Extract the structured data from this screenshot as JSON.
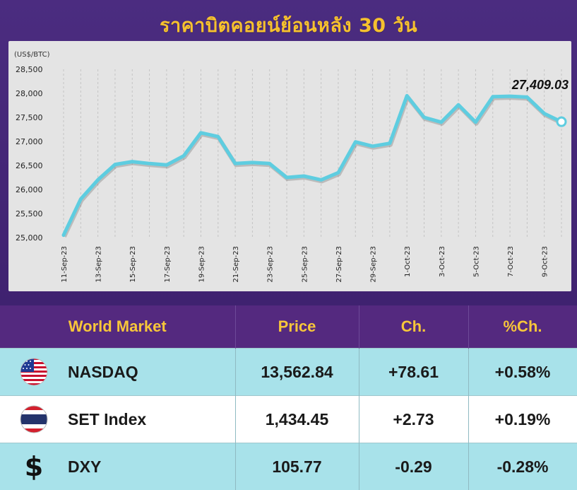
{
  "title": "ราคาบิตคอยน์ย้อนหลัง 30 วัน",
  "chart_data": {
    "type": "line",
    "ylabel": "(US$/BTC)",
    "ylim": [
      25000,
      28500
    ],
    "yticks": [
      "25,000",
      "25,500",
      "26,000",
      "26,500",
      "27,000",
      "27,500",
      "28,000",
      "28,500"
    ],
    "x_tick_labels": [
      "11-Sep-23",
      "13-Sep-23",
      "15-Sep-23",
      "17-Sep-23",
      "19-Sep-23",
      "21-Sep-23",
      "23-Sep-23",
      "25-Sep-23",
      "27-Sep-23",
      "29-Sep-23",
      "1-Oct-23",
      "3-Oct-23",
      "5-Oct-23",
      "7-Oct-23",
      "9-Oct-23"
    ],
    "x": [
      "11-Sep-23",
      "12-Sep-23",
      "13-Sep-23",
      "14-Sep-23",
      "15-Sep-23",
      "16-Sep-23",
      "17-Sep-23",
      "18-Sep-23",
      "19-Sep-23",
      "20-Sep-23",
      "21-Sep-23",
      "22-Sep-23",
      "23-Sep-23",
      "24-Sep-23",
      "25-Sep-23",
      "26-Sep-23",
      "27-Sep-23",
      "28-Sep-23",
      "29-Sep-23",
      "30-Sep-23",
      "1-Oct-23",
      "2-Oct-23",
      "3-Oct-23",
      "4-Oct-23",
      "5-Oct-23",
      "6-Oct-23",
      "7-Oct-23",
      "8-Oct-23",
      "9-Oct-23",
      "10-Oct-23"
    ],
    "series": [
      {
        "values": [
          25050,
          25800,
          26200,
          26520,
          26580,
          26540,
          26510,
          26700,
          27180,
          27100,
          26540,
          26560,
          26540,
          26250,
          26280,
          26200,
          26350,
          26990,
          26900,
          26960,
          27950,
          27500,
          27400,
          27760,
          27400,
          27930,
          27940,
          27920,
          27580,
          27409.03
        ],
        "color": "#5ecde0"
      }
    ],
    "annotation": "27,409.03",
    "grid": "vertical-dashed"
  },
  "table": {
    "headers": [
      "World Market",
      "Price",
      "Ch.",
      "%Ch."
    ],
    "rows": [
      {
        "icon": "us-flag-icon",
        "name": "NASDAQ",
        "price": "13,562.84",
        "change": "+78.61",
        "pct": "+0.58%"
      },
      {
        "icon": "thai-flag-icon",
        "name": "SET Index",
        "price": "1,434.45",
        "change": "+2.73",
        "pct": "+0.19%"
      },
      {
        "icon": "dollar-icon",
        "name": "DXY",
        "price": "105.77",
        "change": "-0.29",
        "pct": "-0.28%"
      }
    ]
  },
  "colors": {
    "title": "#f6c12e",
    "header_bg": "#54297f",
    "header_text": "#f7c63a",
    "row_teal": "#a8e2ea",
    "line": "#5ecde0"
  }
}
